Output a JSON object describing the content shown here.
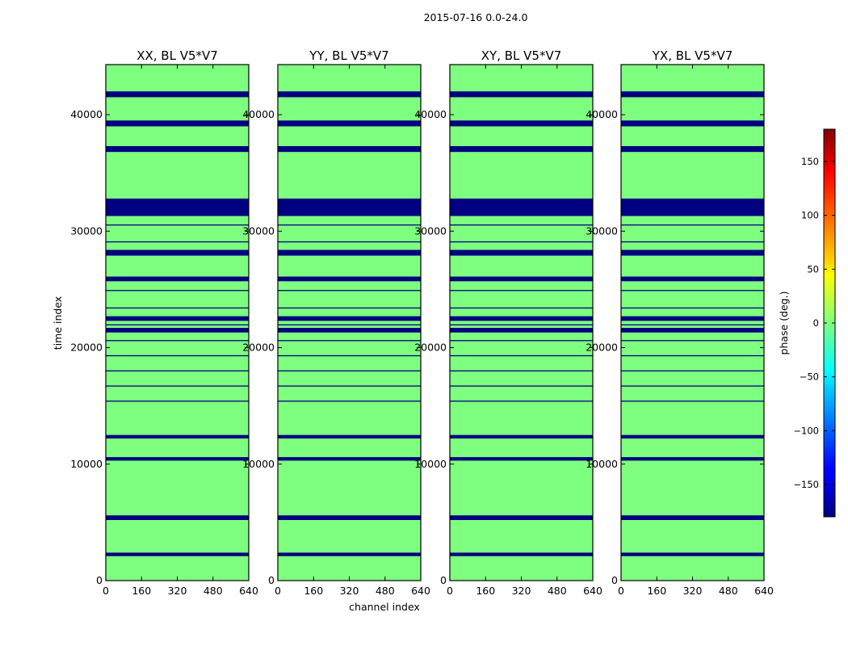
{
  "figure": {
    "title": "2015-07-16 0.0-24.0"
  },
  "chart_data": {
    "type": "heatmap",
    "title": "2015-07-16 0.0-24.0",
    "xlabel": "channel index",
    "ylabel": "time index",
    "xlim": [
      0,
      640
    ],
    "ylim": [
      0,
      44300
    ],
    "xticks": [
      "0",
      "160",
      "320",
      "480",
      "640"
    ],
    "yticks": [
      "0",
      "10000",
      "20000",
      "30000",
      "40000"
    ],
    "xtick_values": [
      0,
      160,
      320,
      480,
      640
    ],
    "ytick_values": [
      0,
      10000,
      20000,
      30000,
      40000
    ],
    "colormap": "jet",
    "panels": [
      {
        "title": "XX, BL V5*V7",
        "tint": "#00b8ff"
      },
      {
        "title": "YY, BL V5*V7",
        "tint": "#b8ff40"
      },
      {
        "title": "XY, BL V5*V7",
        "tint": "#7fff7f"
      },
      {
        "title": "YX, BL V5*V7",
        "tint": "#7fff7f"
      }
    ],
    "colorbar": {
      "label": "phase (deg.)",
      "vmin": -180,
      "vmax": 180,
      "ticks": [
        -150,
        -100,
        -50,
        0,
        50,
        100,
        150
      ],
      "tick_labels": [
        "−150",
        "−100",
        "−50",
        "0",
        "50",
        "100",
        "150"
      ]
    },
    "bands": [
      {
        "y0": 0,
        "y1": 2100,
        "kind": "noise"
      },
      {
        "y0": 2100,
        "y1": 2400,
        "kind": "flag"
      },
      {
        "y0": 2400,
        "y1": 5200,
        "kind": "noise"
      },
      {
        "y0": 5200,
        "y1": 5600,
        "kind": "flag"
      },
      {
        "y0": 5600,
        "y1": 10300,
        "kind": "noise"
      },
      {
        "y0": 10300,
        "y1": 10600,
        "kind": "flag"
      },
      {
        "y0": 10600,
        "y1": 12200,
        "kind": "noise"
      },
      {
        "y0": 12200,
        "y1": 12500,
        "kind": "flag"
      },
      {
        "y0": 12500,
        "y1": 14800,
        "kind": "noise"
      },
      {
        "y0": 14800,
        "y1": 21300,
        "kind": "zero"
      },
      {
        "y0": 21300,
        "y1": 21700,
        "kind": "flag"
      },
      {
        "y0": 21700,
        "y1": 22300,
        "kind": "zero"
      },
      {
        "y0": 22300,
        "y1": 22700,
        "kind": "flag"
      },
      {
        "y0": 22700,
        "y1": 25700,
        "kind": "zero"
      },
      {
        "y0": 25700,
        "y1": 26100,
        "kind": "flag"
      },
      {
        "y0": 26100,
        "y1": 27900,
        "kind": "noise"
      },
      {
        "y0": 27900,
        "y1": 28400,
        "kind": "flag"
      },
      {
        "y0": 28400,
        "y1": 31300,
        "kind": "zero"
      },
      {
        "y0": 31300,
        "y1": 32800,
        "kind": "flag"
      },
      {
        "y0": 32800,
        "y1": 36800,
        "kind": "noise"
      },
      {
        "y0": 36800,
        "y1": 37300,
        "kind": "flag"
      },
      {
        "y0": 37300,
        "y1": 39000,
        "kind": "noise"
      },
      {
        "y0": 39000,
        "y1": 39500,
        "kind": "flag"
      },
      {
        "y0": 39500,
        "y1": 41500,
        "kind": "noise"
      },
      {
        "y0": 41500,
        "y1": 42000,
        "kind": "flag"
      },
      {
        "y0": 42000,
        "y1": 44300,
        "kind": "noise"
      }
    ]
  }
}
